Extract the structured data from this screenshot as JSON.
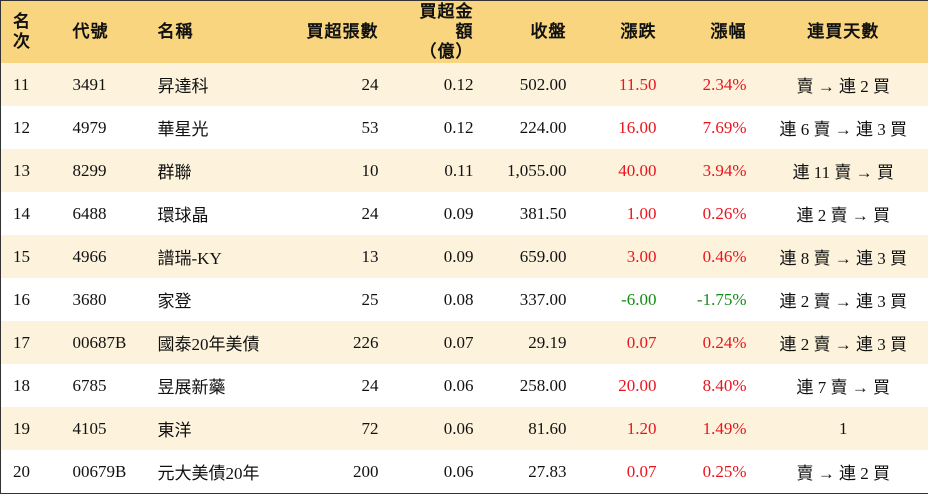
{
  "table": {
    "header": [
      "名次",
      "代號",
      "名稱",
      "買超張數",
      "買超金額\n（億）",
      "收盤",
      "漲跌",
      "漲幅",
      "連買天數"
    ],
    "rows": [
      [
        "11",
        "3491",
        "昇達科",
        "24",
        "0.12",
        "502.00",
        "11.50",
        "2.34%",
        "賣 → 連 2 買"
      ],
      [
        "12",
        "4979",
        "華星光",
        "53",
        "0.12",
        "224.00",
        "16.00",
        "7.69%",
        "連 6 賣 → 連 3 買"
      ],
      [
        "13",
        "8299",
        "群聯",
        "10",
        "0.11",
        "1,055.00",
        "40.00",
        "3.94%",
        "連 11 賣 → 買"
      ],
      [
        "14",
        "6488",
        "環球晶",
        "24",
        "0.09",
        "381.50",
        "1.00",
        "0.26%",
        "連 2 賣 → 買"
      ],
      [
        "15",
        "4966",
        "譜瑞-KY",
        "13",
        "0.09",
        "659.00",
        "3.00",
        "0.46%",
        "連 8 賣 → 連 3 買"
      ],
      [
        "16",
        "3680",
        "家登",
        "25",
        "0.08",
        "337.00",
        "-6.00",
        "-1.75%",
        "連 2 賣 → 連 3 買"
      ],
      [
        "17",
        "00687B",
        "國泰20年美債",
        "226",
        "0.07",
        "29.19",
        "0.07",
        "0.24%",
        "連 2 賣 → 連 3 買"
      ],
      [
        "18",
        "6785",
        "昱展新藥",
        "24",
        "0.06",
        "258.00",
        "20.00",
        "8.40%",
        "連 7 賣 → 買"
      ],
      [
        "19",
        "4105",
        "東洋",
        "72",
        "0.06",
        "81.60",
        "1.20",
        "1.49%",
        "1"
      ],
      [
        "20",
        "00679B",
        "元大美債20年",
        "200",
        "0.06",
        "27.83",
        "0.07",
        "0.25%",
        "賣 → 連 2 買"
      ]
    ]
  }
}
